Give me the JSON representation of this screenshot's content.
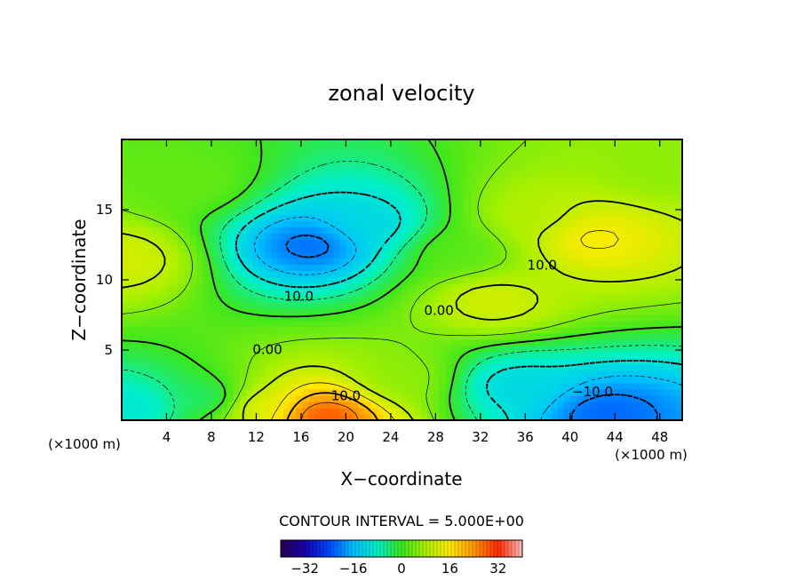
{
  "chart_data": {
    "type": "heatmap",
    "title": "zonal velocity",
    "xlabel": "X−coordinate",
    "ylabel": "Z−coordinate",
    "x_unit_left": "(×1000 m)",
    "x_unit_right": "(×1000 m)",
    "xlim": [
      0,
      50
    ],
    "ylim": [
      0,
      20
    ],
    "x_ticks": [
      4,
      8,
      12,
      16,
      20,
      24,
      28,
      32,
      36,
      40,
      44,
      48
    ],
    "y_ticks": [
      5,
      10,
      15
    ],
    "contour_interval_text": "CONTOUR INTERVAL = 5.000E+00",
    "colorbar": {
      "min": -40,
      "max": 40,
      "ticks": [
        "−32",
        "−16",
        "0",
        "16",
        "32"
      ]
    },
    "contour_labels": [
      {
        "text": "10.0",
        "x": 15.8,
        "z": 8.8
      },
      {
        "text": "10.0",
        "x": 37.5,
        "z": 11.0
      },
      {
        "text": "0.00",
        "x": 28.3,
        "z": 7.8
      },
      {
        "text": "0.00",
        "x": 13.0,
        "z": 5.0
      },
      {
        "text": "10.0",
        "x": 20.0,
        "z": 1.7
      },
      {
        "text": "−10.0",
        "x": 42.0,
        "z": 2.0
      }
    ],
    "features": [
      {
        "x": 17,
        "z": 12.5,
        "value": -22
      },
      {
        "x": 22,
        "z": 14.0,
        "value": -12
      },
      {
        "x": 42,
        "z": 13.0,
        "value": 16
      },
      {
        "x": 37,
        "z": 14.5,
        "value": 9
      },
      {
        "x": 33,
        "z": 8.5,
        "value": 12
      },
      {
        "x": 0,
        "z": 11.5,
        "value": 12
      },
      {
        "x": 18,
        "z": 0.3,
        "value": 30
      },
      {
        "x": 12,
        "z": 1.0,
        "value": 14
      },
      {
        "x": 43,
        "z": 0.5,
        "value": -22
      },
      {
        "x": 35,
        "z": 2.5,
        "value": -12
      },
      {
        "x": 1,
        "z": 1.0,
        "value": -10
      },
      {
        "x": 8,
        "z": 1.5,
        "value": -5
      },
      {
        "x": 25,
        "z": 3.0,
        "value": 6
      },
      {
        "x": 6,
        "z": 17.0,
        "value": 3
      },
      {
        "x": 30,
        "z": 12.0,
        "value": 2
      },
      {
        "x": 48,
        "z": 18.0,
        "value": 6
      }
    ]
  }
}
